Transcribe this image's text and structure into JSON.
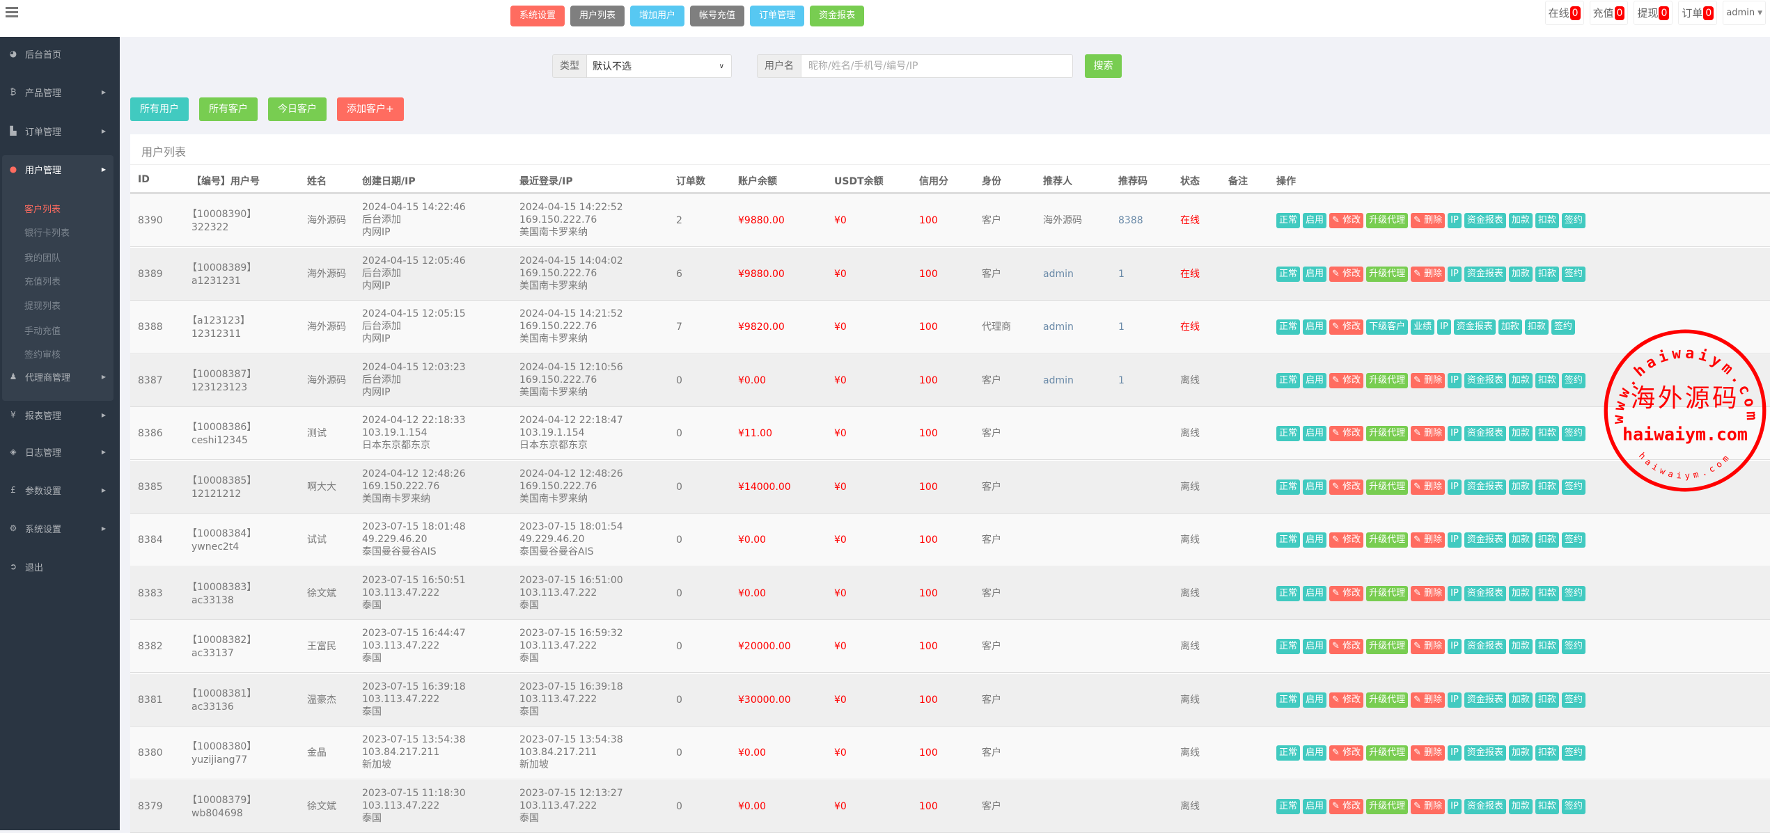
{
  "colors": {
    "red": "#ff6c60",
    "gray": "#7f7f7f",
    "cyan": "#57c8f2",
    "green": "#78cd51",
    "teal": "#41cac0",
    "sidebar": "#2a3542"
  },
  "header": {
    "menu_icon": "bars-icon",
    "nav": [
      {
        "label": "系统设置",
        "color": "#ff6c60"
      },
      {
        "label": "用户列表",
        "color": "#7f7f7f"
      },
      {
        "label": "增加用户",
        "color": "#57c8f2"
      },
      {
        "label": "帐号充值",
        "color": "#7f7f7f"
      },
      {
        "label": "订单管理",
        "color": "#57c8f2"
      },
      {
        "label": "资金报表",
        "color": "#78cd51"
      }
    ],
    "stats": [
      {
        "label": "在线",
        "count": "0"
      },
      {
        "label": "充值",
        "count": "0"
      },
      {
        "label": "提现",
        "count": "0"
      },
      {
        "label": "订单",
        "count": "0"
      }
    ],
    "user": "admin"
  },
  "sidebar": {
    "items": [
      {
        "label": "后台首页",
        "icon": "dashboard-icon",
        "glyph": "◕"
      },
      {
        "label": "产品管理",
        "icon": "bitcoin-icon",
        "glyph": "₿",
        "arrow": true
      },
      {
        "label": "订单管理",
        "icon": "copy-icon",
        "glyph": "▙",
        "arrow": true
      },
      {
        "label": "用户管理",
        "icon": "user-icon",
        "glyph": "●",
        "arrow": true,
        "active": true
      },
      {
        "label": "代理商管理",
        "icon": "users-icon",
        "glyph": "♟",
        "arrow": true
      },
      {
        "label": "报表管理",
        "icon": "yen-icon",
        "glyph": "¥",
        "arrow": true
      },
      {
        "label": "日志管理",
        "icon": "ticket-icon",
        "glyph": "◈",
        "arrow": true
      },
      {
        "label": "参数设置",
        "icon": "pound-icon",
        "glyph": "£",
        "arrow": true
      },
      {
        "label": "系统设置",
        "icon": "cogs-icon",
        "glyph": "⚙",
        "arrow": true
      },
      {
        "label": "退出",
        "icon": "sign-out-icon",
        "glyph": "➲"
      }
    ],
    "submenu": [
      {
        "label": "客户列表",
        "active": true
      },
      {
        "label": "银行卡列表"
      },
      {
        "label": "我的团队"
      },
      {
        "label": "充值列表"
      },
      {
        "label": "提现列表"
      },
      {
        "label": "手动充值"
      },
      {
        "label": "签约审核"
      }
    ]
  },
  "search": {
    "type_label": "类型",
    "type_value": "默认不选",
    "user_label": "用户名",
    "user_placeholder": "昵称/姓名/手机号/编号/IP",
    "submit": "搜索"
  },
  "filters": [
    {
      "label": "所有用户",
      "color": "#41cac0"
    },
    {
      "label": "所有客户",
      "color": "#78cd51"
    },
    {
      "label": "今日客户",
      "color": "#78cd51"
    },
    {
      "label": "添加客户+",
      "color": "#ff6c60"
    }
  ],
  "table": {
    "title": "用户列表",
    "columns": [
      "ID",
      "【编号】用户号",
      "姓名",
      "创建日期/IP",
      "最近登录/IP",
      "订单数",
      "账户余额",
      "USDT余额",
      "信用分",
      "身份",
      "推荐人",
      "推荐码",
      "状态",
      "备注",
      "操作"
    ],
    "action_sets": {
      "customer": [
        {
          "label": "正常",
          "color": "#41cac0"
        },
        {
          "label": "启用",
          "color": "#41cac0"
        },
        {
          "label": "修改",
          "color": "#ff6c60",
          "icon": "pencil-icon"
        },
        {
          "label": "升级代理",
          "color": "#78cd51"
        },
        {
          "label": "删除",
          "color": "#ff6c60",
          "icon": "pencil-icon"
        },
        {
          "label": "IP",
          "color": "#41cac0"
        },
        {
          "label": "资金报表",
          "color": "#41cac0"
        },
        {
          "label": "加款",
          "color": "#41cac0"
        },
        {
          "label": "扣款",
          "color": "#41cac0"
        },
        {
          "label": "签约",
          "color": "#41cac0"
        }
      ],
      "agent": [
        {
          "label": "正常",
          "color": "#41cac0"
        },
        {
          "label": "启用",
          "color": "#41cac0"
        },
        {
          "label": "修改",
          "color": "#ff6c60",
          "icon": "pencil-icon"
        },
        {
          "label": "下级客户",
          "color": "#41cac0"
        },
        {
          "label": "业绩",
          "color": "#41cac0"
        },
        {
          "label": "IP",
          "color": "#41cac0"
        },
        {
          "label": "资金报表",
          "color": "#41cac0"
        },
        {
          "label": "加款",
          "color": "#41cac0"
        },
        {
          "label": "扣款",
          "color": "#41cac0"
        },
        {
          "label": "签约",
          "color": "#41cac0"
        }
      ]
    },
    "rows": [
      {
        "id": "8390",
        "code": "【10008390】",
        "username": "322322",
        "name": "海外源码",
        "created": [
          "2024-04-15 14:22:46",
          "后台添加",
          "内网IP"
        ],
        "login": [
          "2024-04-15 14:22:52",
          "169.150.222.76",
          "美国南卡罗来纳"
        ],
        "orders": "2",
        "balance": "¥9880.00",
        "usdt": "¥0",
        "credit": "100",
        "role": "客户",
        "referrer": "海外源码",
        "ref_code": "8388",
        "status": "在线",
        "online": true,
        "actions": "customer"
      },
      {
        "id": "8389",
        "code": "【10008389】",
        "username": "a1231231",
        "name": "海外源码",
        "created": [
          "2024-04-15 12:05:46",
          "后台添加",
          "内网IP"
        ],
        "login": [
          "2024-04-15 14:04:02",
          "169.150.222.76",
          "美国南卡罗来纳"
        ],
        "orders": "6",
        "balance": "¥9880.00",
        "usdt": "¥0",
        "credit": "100",
        "role": "客户",
        "referrer": "admin",
        "ref_code": "1",
        "status": "在线",
        "online": true,
        "actions": "customer"
      },
      {
        "id": "8388",
        "code": "【a123123】",
        "username": "12312311",
        "name": "海外源码",
        "created": [
          "2024-04-15 12:05:15",
          "后台添加",
          "内网IP"
        ],
        "login": [
          "2024-04-15 14:21:52",
          "169.150.222.76",
          "美国南卡罗来纳"
        ],
        "orders": "7",
        "balance": "¥9820.00",
        "usdt": "¥0",
        "credit": "100",
        "role": "代理商",
        "referrer": "admin",
        "ref_code": "1",
        "status": "在线",
        "online": true,
        "actions": "agent"
      },
      {
        "id": "8387",
        "code": "【10008387】",
        "username": "123123123",
        "name": "海外源码",
        "created": [
          "2024-04-15 12:03:23",
          "后台添加",
          "内网IP"
        ],
        "login": [
          "2024-04-15 12:10:56",
          "169.150.222.76",
          "美国南卡罗来纳"
        ],
        "orders": "0",
        "balance": "¥0.00",
        "usdt": "¥0",
        "credit": "100",
        "role": "客户",
        "referrer": "admin",
        "ref_code": "1",
        "status": "离线",
        "online": false,
        "actions": "customer"
      },
      {
        "id": "8386",
        "code": "【10008386】",
        "username": "ceshi12345",
        "name": "测试",
        "created": [
          "2024-04-12 22:18:33",
          "103.19.1.154",
          "日本东京都东京"
        ],
        "login": [
          "2024-04-12 22:18:47",
          "103.19.1.154",
          "日本东京都东京"
        ],
        "orders": "0",
        "balance": "¥11.00",
        "usdt": "¥0",
        "credit": "100",
        "role": "客户",
        "referrer": "",
        "ref_code": "",
        "status": "离线",
        "online": false,
        "actions": "customer"
      },
      {
        "id": "8385",
        "code": "【10008385】",
        "username": "12121212",
        "name": "啊大大",
        "created": [
          "2024-04-12 12:48:26",
          "169.150.222.76",
          "美国南卡罗来纳"
        ],
        "login": [
          "2024-04-12 12:48:26",
          "169.150.222.76",
          "美国南卡罗来纳"
        ],
        "orders": "0",
        "balance": "¥14000.00",
        "usdt": "¥0",
        "credit": "100",
        "role": "客户",
        "referrer": "",
        "ref_code": "",
        "status": "离线",
        "online": false,
        "actions": "customer"
      },
      {
        "id": "8384",
        "code": "【10008384】",
        "username": "ywnec2t4",
        "name": "试试",
        "created": [
          "2023-07-15 18:01:48",
          "49.229.46.20",
          "泰国曼谷曼谷AIS"
        ],
        "login": [
          "2023-07-15 18:01:54",
          "49.229.46.20",
          "泰国曼谷曼谷AIS"
        ],
        "orders": "0",
        "balance": "¥0.00",
        "usdt": "¥0",
        "credit": "100",
        "role": "客户",
        "referrer": "",
        "ref_code": "",
        "status": "离线",
        "online": false,
        "actions": "customer"
      },
      {
        "id": "8383",
        "code": "【10008383】",
        "username": "ac33138",
        "name": "徐文斌",
        "created": [
          "2023-07-15 16:50:51",
          "103.113.47.222",
          "泰国"
        ],
        "login": [
          "2023-07-15 16:51:00",
          "103.113.47.222",
          "泰国"
        ],
        "orders": "0",
        "balance": "¥0.00",
        "usdt": "¥0",
        "credit": "100",
        "role": "客户",
        "referrer": "",
        "ref_code": "",
        "status": "离线",
        "online": false,
        "actions": "customer"
      },
      {
        "id": "8382",
        "code": "【10008382】",
        "username": "ac33137",
        "name": "王富民",
        "created": [
          "2023-07-15 16:44:47",
          "103.113.47.222",
          "泰国"
        ],
        "login": [
          "2023-07-15 16:59:32",
          "103.113.47.222",
          "泰国"
        ],
        "orders": "0",
        "balance": "¥20000.00",
        "usdt": "¥0",
        "credit": "100",
        "role": "客户",
        "referrer": "",
        "ref_code": "",
        "status": "离线",
        "online": false,
        "actions": "customer"
      },
      {
        "id": "8381",
        "code": "【10008381】",
        "username": "ac33136",
        "name": "温豪杰",
        "created": [
          "2023-07-15 16:39:18",
          "103.113.47.222",
          "泰国"
        ],
        "login": [
          "2023-07-15 16:39:18",
          "103.113.47.222",
          "泰国"
        ],
        "orders": "0",
        "balance": "¥30000.00",
        "usdt": "¥0",
        "credit": "100",
        "role": "客户",
        "referrer": "",
        "ref_code": "",
        "status": "离线",
        "online": false,
        "actions": "customer"
      },
      {
        "id": "8380",
        "code": "【10008380】",
        "username": "yuzijiang77",
        "name": "金晶",
        "created": [
          "2023-07-15 13:54:38",
          "103.84.217.211",
          "新加坡"
        ],
        "login": [
          "2023-07-15 13:54:38",
          "103.84.217.211",
          "新加坡"
        ],
        "orders": "0",
        "balance": "¥0.00",
        "usdt": "¥0",
        "credit": "100",
        "role": "客户",
        "referrer": "",
        "ref_code": "",
        "status": "离线",
        "online": false,
        "actions": "customer"
      },
      {
        "id": "8379",
        "code": "【10008379】",
        "username": "wb804698",
        "name": "徐文斌",
        "created": [
          "2023-07-15 11:18:30",
          "103.113.47.222",
          "泰国"
        ],
        "login": [
          "2023-07-15 12:13:27",
          "103.113.47.222",
          "泰国"
        ],
        "orders": "0",
        "balance": "¥0.00",
        "usdt": "¥0",
        "credit": "100",
        "role": "客户",
        "referrer": "",
        "ref_code": "",
        "status": "离线",
        "online": false,
        "actions": "customer"
      }
    ]
  },
  "watermark": {
    "top_arc": "www.haiwaiym.com",
    "center": "海外源码",
    "middle": "haiwaiym.com",
    "bottom_arc": "haiwaiym.com",
    "color": "#ff0000"
  }
}
